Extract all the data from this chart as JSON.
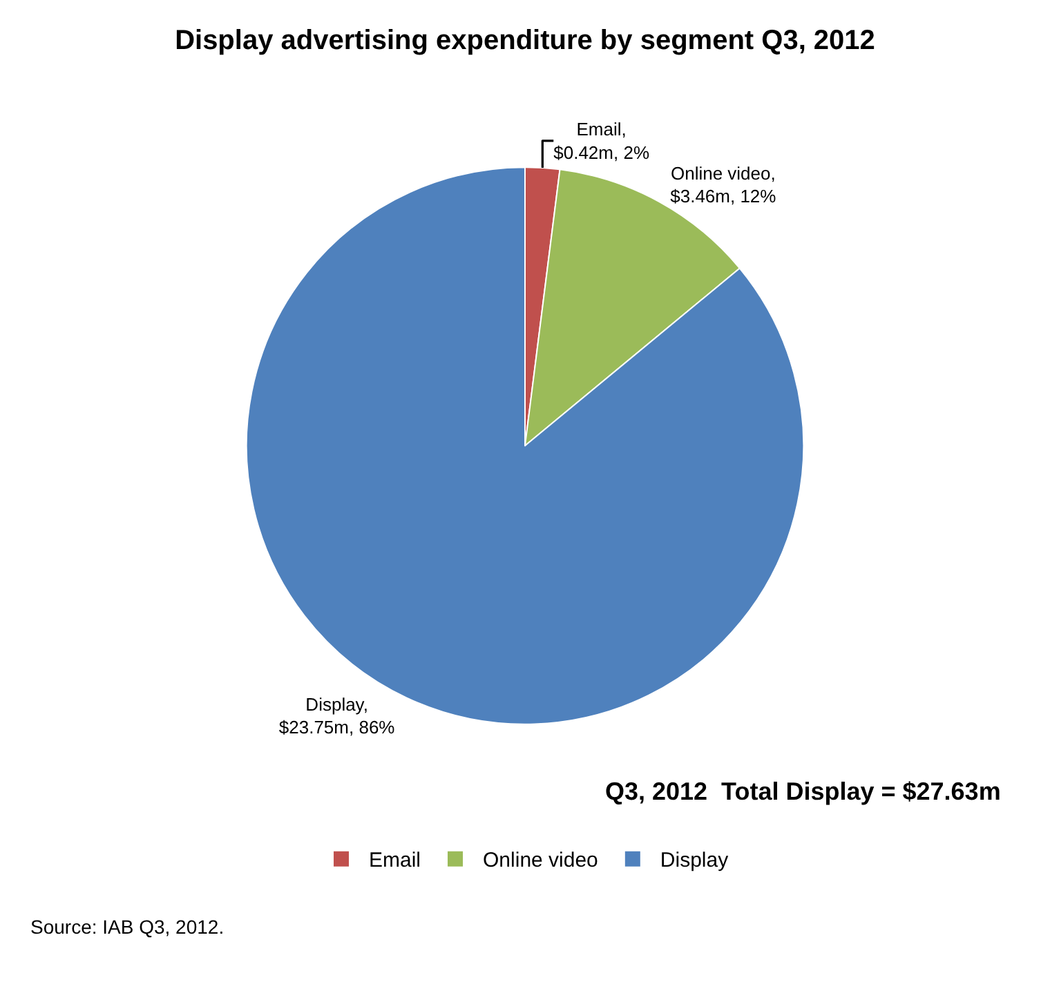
{
  "chart_data": {
    "type": "pie",
    "title": "Display advertising expenditure by segment Q3, 2012",
    "categories": [
      "Email",
      "Online video",
      "Display"
    ],
    "values": [
      2,
      12,
      86
    ],
    "colors": [
      "#c0504d",
      "#9bbb59",
      "#4f81bd"
    ],
    "value_labels": [
      "Email, $0.42m, 2%",
      "Online video, $3.46m, 12%",
      "Display, $23.75m, 86%"
    ],
    "annotations": [
      "Q3, 2012  Total Display = $27.63m",
      "Source: IAB Q3, 2012."
    ],
    "legend": "bottom"
  }
}
